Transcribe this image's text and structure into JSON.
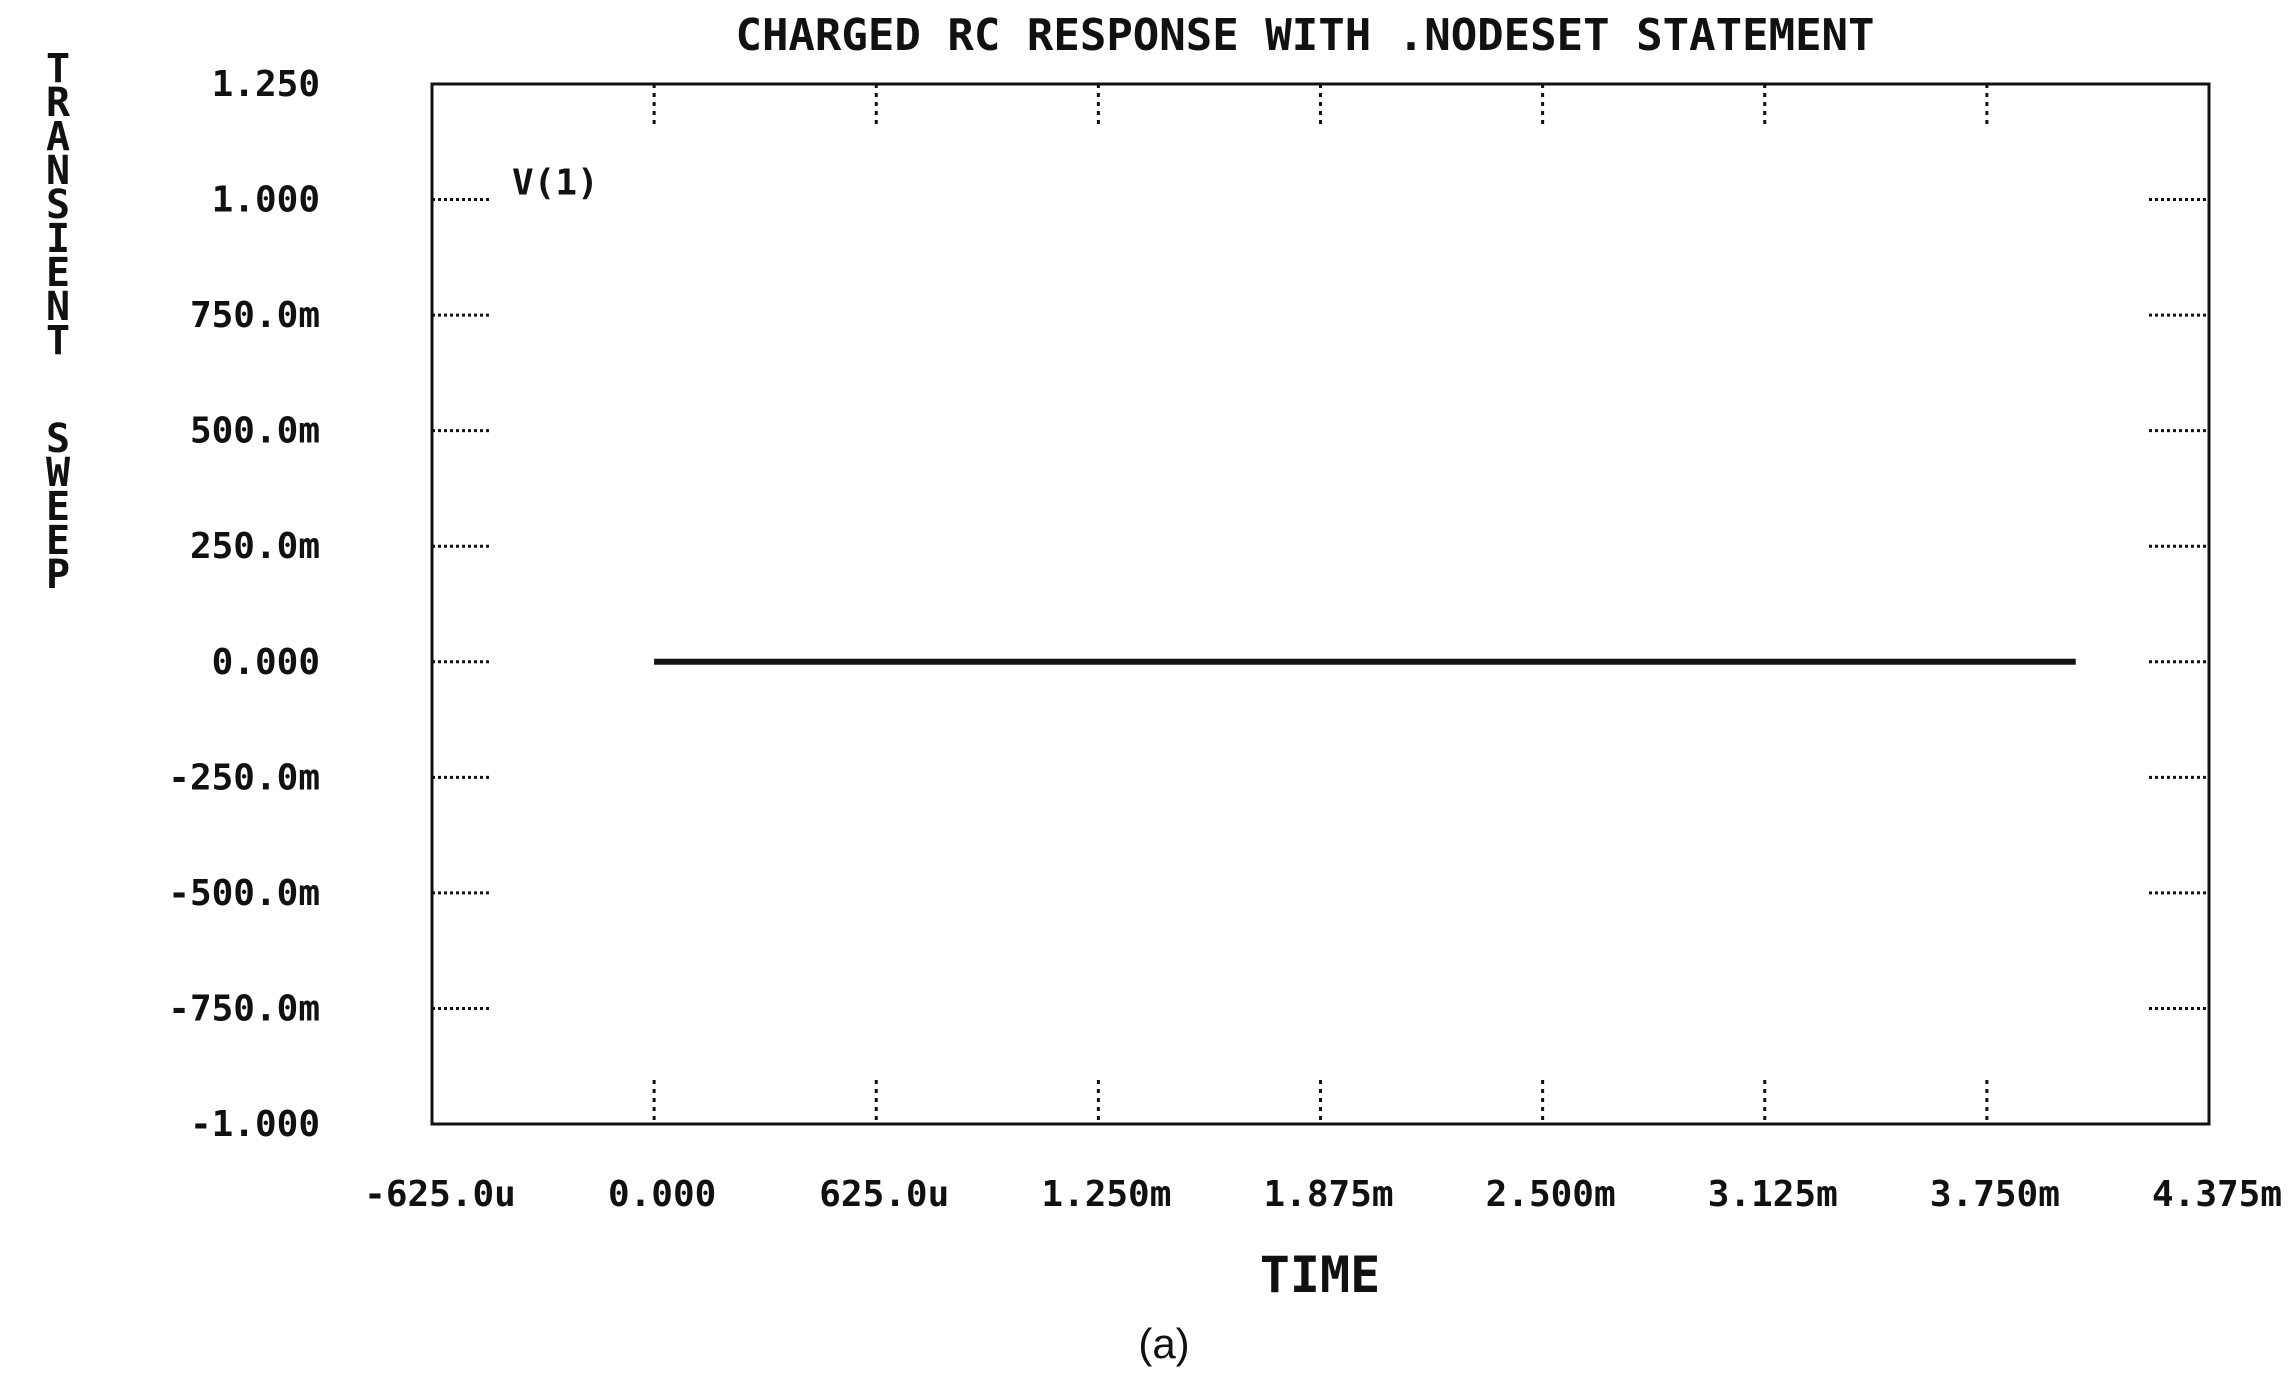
{
  "chart_data": {
    "type": "line",
    "title": "CHARGED RC RESPONSE WITH .NODESET STATEMENT",
    "xlabel": "TIME",
    "ylabel": "TRANSIENT SWEEP",
    "caption": "(a)",
    "xlim": [
      -0.000625,
      0.004375
    ],
    "ylim": [
      -1.0,
      1.25
    ],
    "x_ticks": [
      -0.000625,
      0,
      0.000625,
      0.00125,
      0.001875,
      0.0025,
      0.003125,
      0.00375,
      0.004375
    ],
    "x_tick_labels": [
      "-625.0u",
      "0.000",
      "625.0u",
      "1.250m",
      "1.875m",
      "2.500m",
      "3.125m",
      "3.750m",
      "4.375m"
    ],
    "y_ticks": [
      1.25,
      1.0,
      0.75,
      0.5,
      0.25,
      0.0,
      -0.25,
      -0.5,
      -0.75,
      -1.0
    ],
    "y_tick_labels": [
      "1.250",
      "1.000",
      "750.0m",
      "500.0m",
      "250.0m",
      "0.000",
      "-250.0m",
      "-500.0m",
      "-750.0m",
      "-1.000"
    ],
    "grid": false,
    "legend": "top-left",
    "series": [
      {
        "name": "V(1)",
        "x": [
          0,
          0.004
        ],
        "y": [
          0,
          0
        ]
      }
    ]
  }
}
